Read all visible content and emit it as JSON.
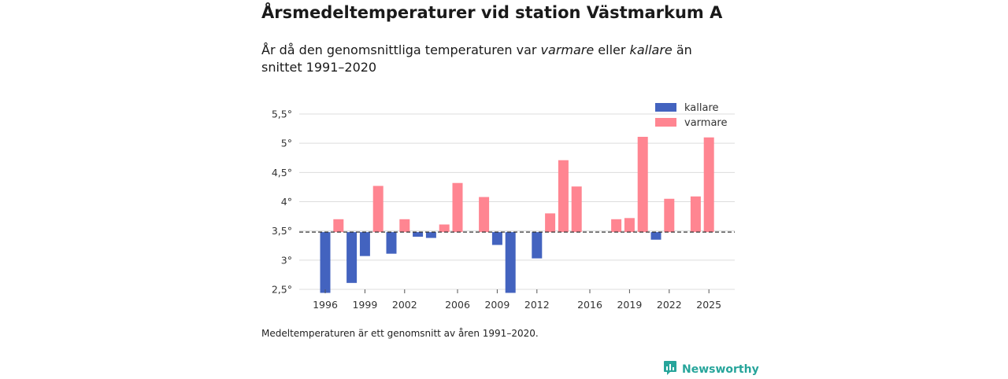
{
  "header": {
    "title": "Årsmedeltemperaturer vid station Västmarkum A",
    "subtitle_pre": "År då den genomsnittliga temperaturen var ",
    "subtitle_warm": "varmare",
    "subtitle_mid": " eller ",
    "subtitle_cold": "kallare",
    "subtitle_post": " än snittet 1991–2020"
  },
  "footnote": "Medeltemperaturen är ett genomsnitt av åren 1991–2020.",
  "brand": {
    "name": "Newsworthy",
    "icon": "newsworthy-logo-icon",
    "color": "#27a59b"
  },
  "colors": {
    "kallare": "#4363bf",
    "varmare": "#ff8591"
  },
  "chart_data": {
    "type": "bar",
    "baseline": 3.48,
    "ylim": [
      2.5,
      5.5
    ],
    "yticks": [
      2.5,
      3,
      3.5,
      4,
      4.5,
      5,
      5.5
    ],
    "ytick_labels": [
      "2,5°",
      "3°",
      "3,5°",
      "4°",
      "4,5°",
      "5°",
      "5,5°"
    ],
    "xticks": [
      1996,
      1999,
      2002,
      2006,
      2009,
      2012,
      2016,
      2019,
      2022,
      2025
    ],
    "xtick_labels": [
      "1996",
      "1999",
      "2002",
      "2006",
      "2009",
      "2012",
      "2016",
      "2019",
      "2022",
      "2025"
    ],
    "xlim": [
      1995,
      2026
    ],
    "legend": [
      {
        "key": "kallare",
        "label": "kallare"
      },
      {
        "key": "varmare",
        "label": "varmare"
      }
    ],
    "series": [
      {
        "year": 1996,
        "value": 2.44
      },
      {
        "year": 1997,
        "value": 3.7
      },
      {
        "year": 1998,
        "value": 2.61
      },
      {
        "year": 1999,
        "value": 3.07
      },
      {
        "year": 2000,
        "value": 4.27
      },
      {
        "year": 2001,
        "value": 3.11
      },
      {
        "year": 2002,
        "value": 3.7
      },
      {
        "year": 2003,
        "value": 3.4
      },
      {
        "year": 2004,
        "value": 3.38
      },
      {
        "year": 2005,
        "value": 3.61
      },
      {
        "year": 2006,
        "value": 4.32
      },
      {
        "year": 2008,
        "value": 4.08
      },
      {
        "year": 2009,
        "value": 3.26
      },
      {
        "year": 2010,
        "value": 2.44
      },
      {
        "year": 2012,
        "value": 3.03
      },
      {
        "year": 2013,
        "value": 3.8
      },
      {
        "year": 2014,
        "value": 4.71
      },
      {
        "year": 2015,
        "value": 4.26
      },
      {
        "year": 2018,
        "value": 3.7
      },
      {
        "year": 2019,
        "value": 3.72
      },
      {
        "year": 2020,
        "value": 5.11
      },
      {
        "year": 2021,
        "value": 3.35
      },
      {
        "year": 2022,
        "value": 4.05
      },
      {
        "year": 2024,
        "value": 4.09
      },
      {
        "year": 2025,
        "value": 5.1
      }
    ]
  }
}
